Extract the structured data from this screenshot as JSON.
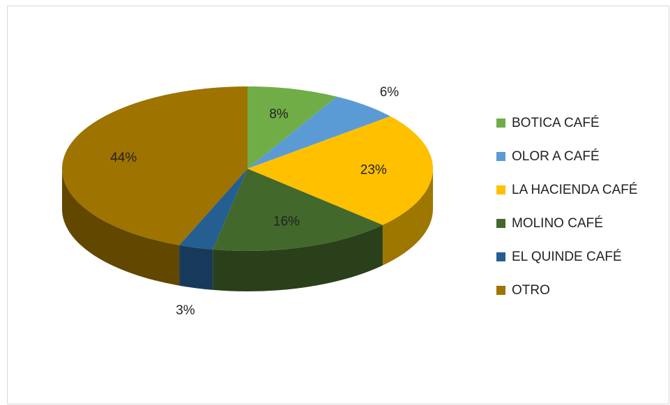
{
  "chart_data": {
    "type": "pie",
    "categories": [
      "BOTICA CAFÉ",
      "OLOR A CAFÉ",
      "LA HACIENDA CAFÉ",
      "MOLINO CAFÉ",
      "EL QUINDE CAFÉ",
      "OTRO"
    ],
    "values": [
      8,
      6,
      23,
      16,
      3,
      44
    ],
    "value_labels": [
      "8%",
      "6%",
      "23%",
      "16%",
      "3%",
      "44%"
    ],
    "colors": [
      "#70ad47",
      "#5b9bd5",
      "#ffc000",
      "#43682b",
      "#255e91",
      "#9e7300"
    ],
    "legend": "right",
    "three_d": true
  }
}
